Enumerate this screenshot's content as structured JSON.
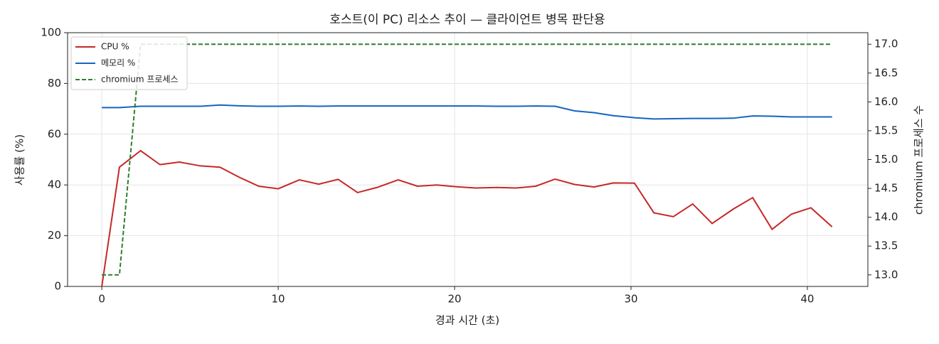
{
  "chart_data": {
    "type": "line",
    "title": "호스트(이 PC) 리소스 추이 — 클라이언트 병목 판단용",
    "xlabel": "경과 시간 (초)",
    "ylabel": "사용률 (%)",
    "y2label": "chromium 프로세스 수",
    "x": [
      0,
      1.0,
      2.2,
      3.3,
      4.4,
      5.6,
      6.7,
      7.8,
      8.9,
      10.0,
      11.2,
      12.3,
      13.4,
      14.5,
      15.6,
      16.8,
      17.9,
      19.0,
      20.1,
      21.2,
      22.4,
      23.5,
      24.6,
      25.7,
      26.8,
      27.9,
      29.0,
      30.2,
      31.3,
      32.4,
      33.5,
      34.6,
      35.8,
      36.9,
      38.0,
      39.1,
      40.2,
      41.4
    ],
    "series": [
      {
        "name": "CPU %",
        "color": "#c62828",
        "dash": "solid",
        "axis": "y",
        "values": [
          0,
          47,
          53.5,
          48,
          49,
          47.5,
          47,
          43,
          39.5,
          38.5,
          42,
          40.3,
          42.2,
          37,
          39,
          42,
          39.5,
          40,
          39.3,
          38.8,
          39,
          38.8,
          39.5,
          42.3,
          40.2,
          39.2,
          40.8,
          40.7,
          29,
          27.5,
          32.5,
          24.8,
          30.5,
          35,
          22.5,
          28.5,
          31,
          23.5
        ]
      },
      {
        "name": "메모리 %",
        "color": "#1565c0",
        "dash": "solid",
        "axis": "y",
        "values": [
          70.5,
          70.5,
          71,
          71,
          71,
          71,
          71.5,
          71.2,
          71,
          71,
          71.1,
          71,
          71.1,
          71.1,
          71.1,
          71.1,
          71.1,
          71.1,
          71.1,
          71.1,
          71,
          71,
          71.1,
          71,
          69.2,
          68.5,
          67.3,
          66.5,
          66,
          66.1,
          66.2,
          66.2,
          66.3,
          67.2,
          67.1,
          66.8,
          66.8,
          66.8
        ]
      },
      {
        "name": "chromium 프로세스",
        "color": "#2e7d32",
        "dash": "dashed",
        "axis": "y2",
        "values": [
          13,
          13,
          17,
          17,
          17,
          17,
          17,
          17,
          17,
          17,
          17,
          17,
          17,
          17,
          17,
          17,
          17,
          17,
          17,
          17,
          17,
          17,
          17,
          17,
          17,
          17,
          17,
          17,
          17,
          17,
          17,
          17,
          17,
          17,
          17,
          17,
          17,
          17
        ]
      }
    ],
    "xlim": [
      -1.94,
      43.43
    ],
    "xticks": [
      0,
      10,
      20,
      30,
      40
    ],
    "ylim": [
      0,
      100
    ],
    "yticks": [
      0,
      20,
      40,
      60,
      80,
      100
    ],
    "y2lim": [
      12.8,
      17.2
    ],
    "y2ticks": [
      {
        "value": 13,
        "label": "13.0"
      },
      13.5,
      {
        "value": 14,
        "label": "14.0"
      },
      14.5,
      {
        "value": 15,
        "label": "15.0"
      },
      15.5,
      {
        "value": 16,
        "label": "16.0"
      },
      16.5,
      {
        "value": 17,
        "label": "17.0"
      }
    ],
    "grid": true,
    "legend": "upper left"
  }
}
